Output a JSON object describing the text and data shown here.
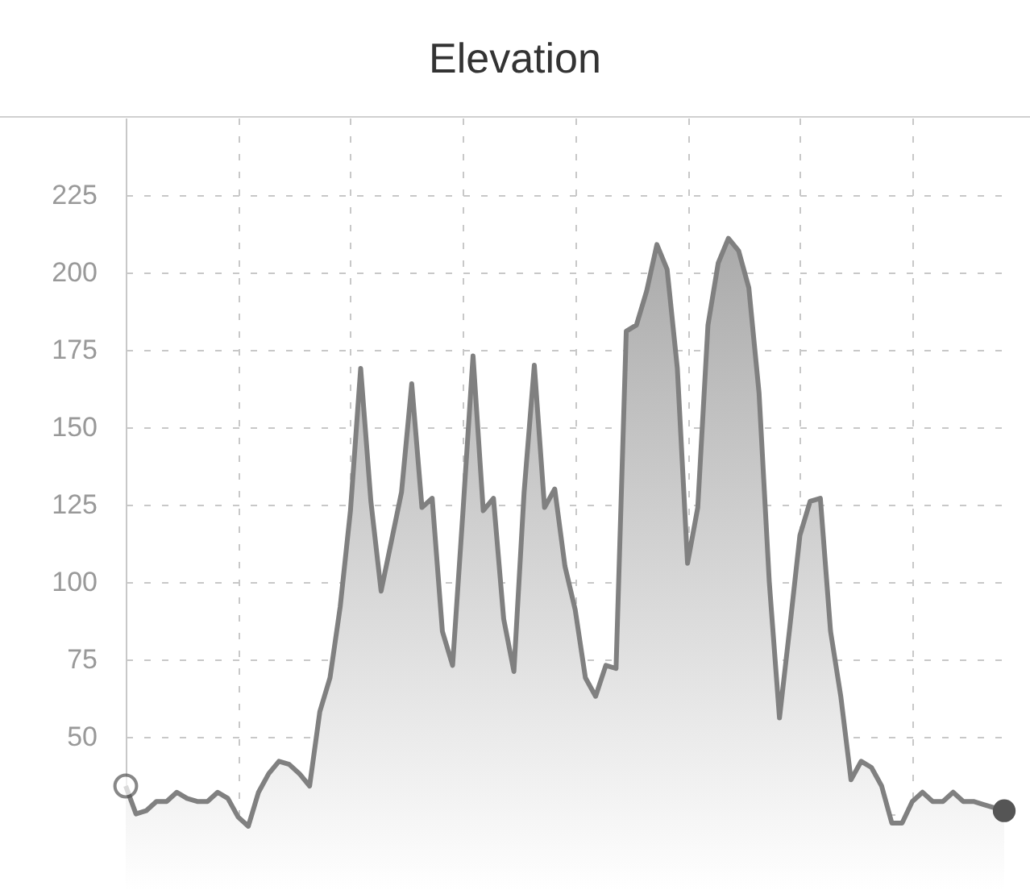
{
  "chart_data": {
    "type": "area",
    "title": "Elevation",
    "categories": [
      null,
      null,
      null,
      null,
      null,
      null,
      null,
      null,
      null,
      null,
      null,
      null,
      null,
      null,
      null,
      null,
      null,
      null,
      null,
      null,
      null,
      null,
      null,
      null,
      null,
      null,
      null,
      null,
      null,
      null,
      null,
      null,
      null,
      null,
      null,
      null,
      null,
      null,
      null,
      null,
      null,
      null,
      null,
      null,
      null,
      null,
      null,
      null,
      null,
      null,
      null,
      null,
      null,
      null,
      null,
      null,
      null,
      null,
      null,
      null,
      null,
      null,
      null,
      null,
      null,
      null,
      null,
      null,
      null,
      null,
      null,
      null,
      null,
      null,
      null,
      null,
      null,
      null,
      null,
      null,
      null,
      null,
      null,
      null,
      null,
      null,
      null
    ],
    "series": [
      {
        "color": "#808080",
        "values": [
          34,
          25,
          26,
          29,
          29,
          32,
          30,
          29,
          29,
          32,
          30,
          24,
          21,
          32,
          38,
          42,
          41,
          38,
          34,
          58,
          69,
          92,
          123,
          169,
          126,
          97,
          113,
          129,
          164,
          124,
          127,
          84,
          73,
          122,
          173,
          123,
          127,
          88,
          71,
          129,
          170,
          124,
          130,
          105,
          91,
          69,
          63,
          73,
          72,
          181,
          183,
          194,
          209,
          201,
          169,
          106,
          124,
          183,
          203,
          211,
          207,
          195,
          161,
          100,
          56,
          85,
          115,
          126,
          127,
          84,
          63,
          36,
          42,
          40,
          34,
          22,
          22,
          29,
          32,
          29,
          29,
          32,
          29,
          29,
          28,
          27,
          26
        ]
      }
    ],
    "ylim": [
      3,
      250
    ],
    "yticks": [
      {
        "value": 25,
        "label": null
      },
      50,
      75,
      100,
      125,
      150,
      175,
      200,
      225
    ],
    "grid": true,
    "tick_labels": "y"
  }
}
